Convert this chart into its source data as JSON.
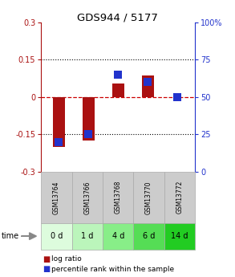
{
  "title": "GDS944 / 5177",
  "samples": [
    "GSM13764",
    "GSM13766",
    "GSM13768",
    "GSM13770",
    "GSM13772"
  ],
  "time_labels": [
    "0 d",
    "1 d",
    "4 d",
    "6 d",
    "14 d"
  ],
  "log_ratio": [
    -0.2,
    -0.175,
    0.055,
    0.085,
    0.0
  ],
  "percentile": [
    20,
    25,
    65,
    60,
    50
  ],
  "ylim_left": [
    -0.3,
    0.3
  ],
  "ylim_right": [
    0,
    100
  ],
  "yticks_left": [
    -0.3,
    -0.15,
    0,
    0.15,
    0.3
  ],
  "yticks_right": [
    0,
    25,
    50,
    75,
    100
  ],
  "ytick_labels_left": [
    "-0.3",
    "-0.15",
    "0",
    "0.15",
    "0.3"
  ],
  "ytick_labels_right": [
    "0",
    "25",
    "50",
    "75",
    "100%"
  ],
  "bar_color": "#aa1111",
  "dot_color": "#2233cc",
  "grid_color": "#000000",
  "zero_line_color": "#cc0000",
  "bg_color": "#ffffff",
  "plot_bg": "#ffffff",
  "sample_bg": "#cccccc",
  "time_bg_colors": [
    "#ddfcdd",
    "#bbf5bb",
    "#88ee88",
    "#55dd55",
    "#22cc22"
  ],
  "bar_width": 0.4,
  "dot_size": 45
}
